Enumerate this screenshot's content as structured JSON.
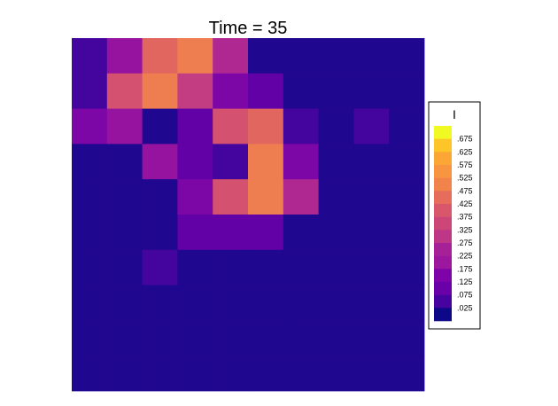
{
  "chart_data": {
    "type": "heatmap",
    "title": "Time = 35",
    "legend": {
      "title": "I",
      "placement": "right",
      "labels": [
        ".675",
        ".625",
        ".575",
        ".525",
        ".475",
        ".425",
        ".375",
        ".325",
        ".275",
        ".225",
        ".175",
        ".125",
        ".075",
        ".025"
      ],
      "colors": [
        "#f0f921",
        "#fdc527",
        "#fca636",
        "#f89540",
        "#f1844b",
        "#e66c5c",
        "#d8576b",
        "#cc4778",
        "#bd3786",
        "#a62098",
        "#9c179e",
        "#7e03a8",
        "#6a00a8",
        "#46039f",
        "#0d0887"
      ]
    },
    "nrows": 10,
    "ncols": 10,
    "values": [
      [
        0.075,
        0.225,
        0.425,
        0.475,
        0.275,
        0.025,
        0.025,
        0.025,
        0.025,
        0.025
      ],
      [
        0.075,
        0.375,
        0.475,
        0.325,
        0.175,
        0.125,
        0.025,
        0.025,
        0.025,
        0.025
      ],
      [
        0.175,
        0.225,
        0.025,
        0.125,
        0.375,
        0.425,
        0.075,
        0.025,
        0.075,
        0.025
      ],
      [
        0.025,
        0.025,
        0.225,
        0.125,
        0.075,
        0.475,
        0.175,
        0.025,
        0.025,
        0.025
      ],
      [
        0.025,
        0.025,
        0.025,
        0.175,
        0.375,
        0.475,
        0.275,
        0.025,
        0.025,
        0.025
      ],
      [
        0.025,
        0.025,
        0.025,
        0.125,
        0.125,
        0.125,
        0.025,
        0.025,
        0.025,
        0.025
      ],
      [
        0.025,
        0.025,
        0.075,
        0.025,
        0.025,
        0.025,
        0.025,
        0.025,
        0.025,
        0.025
      ],
      [
        0.025,
        0.025,
        0.025,
        0.025,
        0.025,
        0.025,
        0.025,
        0.025,
        0.025,
        0.025
      ],
      [
        0.025,
        0.025,
        0.025,
        0.025,
        0.025,
        0.025,
        0.025,
        0.025,
        0.025,
        0.025
      ],
      [
        0.025,
        0.025,
        0.025,
        0.025,
        0.025,
        0.025,
        0.025,
        0.025,
        0.025,
        0.025
      ]
    ],
    "colormap": "plasma",
    "grid": false
  }
}
